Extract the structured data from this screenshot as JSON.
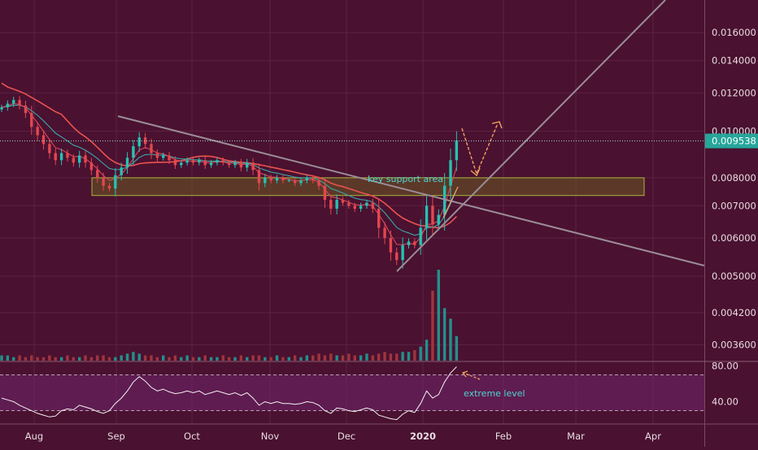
{
  "chart_data": {
    "type": "candlestick",
    "x_labels": [
      "Aug",
      "Sep",
      "Oct",
      "Nov",
      "Dec",
      "2020",
      "Feb",
      "Mar",
      "Apr"
    ],
    "price_axis": {
      "scale": "log",
      "range": [
        0.00334,
        0.0187
      ],
      "ticks": [
        "0.016000",
        "0.014000",
        "0.012000",
        "0.010000",
        "0.008000",
        "0.007000",
        "0.006000",
        "0.005000",
        "0.004200",
        "0.003600"
      ]
    },
    "last_price": "0.009538",
    "rsi_axis": {
      "range": [
        16,
        84
      ],
      "ticks": [
        "80.00",
        "40.00"
      ],
      "overbought": 70,
      "oversold": 30
    },
    "annotations": {
      "support": "key support area",
      "rsi_note": "extreme level"
    },
    "support_zone": {
      "low": 0.00735,
      "high": 0.008
    },
    "closes": [
      0.0112,
      0.0114,
      0.0116,
      0.0113,
      0.0109,
      0.0102,
      0.0098,
      0.0094,
      0.009,
      0.0087,
      0.009,
      0.0088,
      0.0086,
      0.0089,
      0.0086,
      0.0083,
      0.008,
      0.0077,
      0.0076,
      0.0081,
      0.0084,
      0.0088,
      0.0093,
      0.0097,
      0.0094,
      0.009,
      0.0088,
      0.0089,
      0.0087,
      0.0085,
      0.0086,
      0.0087,
      0.0086,
      0.0087,
      0.0085,
      0.0086,
      0.0087,
      0.0086,
      0.0085,
      0.0086,
      0.0084,
      0.0086,
      0.0083,
      0.0078,
      0.008,
      0.0079,
      0.008,
      0.0079,
      0.0079,
      0.0078,
      0.0079,
      0.008,
      0.0079,
      0.0077,
      0.0072,
      0.0069,
      0.0072,
      0.0071,
      0.007,
      0.0069,
      0.007,
      0.0071,
      0.0069,
      0.0063,
      0.006,
      0.0056,
      0.0054,
      0.0058,
      0.0059,
      0.0058,
      0.0063,
      0.007,
      0.0064,
      0.0067,
      0.0077,
      0.0087,
      0.00955
    ],
    "volumes": [
      3,
      3,
      2,
      3,
      2,
      3,
      2,
      2,
      3,
      2,
      2,
      3,
      2,
      2,
      3,
      2,
      3,
      3,
      2,
      2,
      3,
      4,
      5,
      4,
      3,
      3,
      2,
      3,
      2,
      3,
      2,
      3,
      2,
      2,
      3,
      2,
      2,
      3,
      2,
      2,
      3,
      2,
      3,
      3,
      2,
      2,
      3,
      2,
      2,
      3,
      2,
      3,
      3,
      4,
      3,
      4,
      3,
      3,
      4,
      3,
      3,
      4,
      3,
      4,
      5,
      4,
      4,
      5,
      5,
      6,
      8,
      12,
      40,
      52,
      30,
      24,
      14
    ],
    "rsi": [
      44,
      42,
      40,
      36,
      33,
      30,
      27,
      25,
      23,
      24,
      30,
      32,
      31,
      36,
      34,
      32,
      29,
      27,
      30,
      38,
      44,
      52,
      62,
      68,
      63,
      56,
      52,
      54,
      51,
      49,
      50,
      52,
      50,
      52,
      48,
      50,
      52,
      50,
      48,
      50,
      47,
      50,
      44,
      36,
      40,
      38,
      40,
      38,
      38,
      37,
      38,
      40,
      39,
      36,
      30,
      27,
      33,
      32,
      30,
      29,
      31,
      33,
      31,
      25,
      23,
      21,
      20,
      26,
      30,
      28,
      38,
      52,
      44,
      48,
      62,
      72,
      79
    ]
  }
}
